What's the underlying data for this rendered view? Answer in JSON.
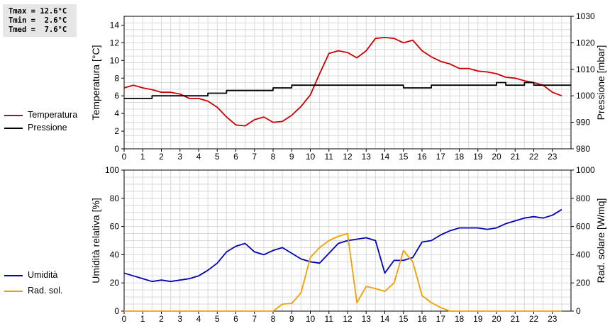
{
  "stats": {
    "lines": [
      "Tmax = 12.6°C",
      "Tmin =  2.6°C",
      "Tmed =  7.6°C"
    ]
  },
  "legends": {
    "top": [
      {
        "label": "Temperatura",
        "color": "#cc0000"
      },
      {
        "label": "Pressione",
        "color": "#000000"
      }
    ],
    "bottom": [
      {
        "label": "Umidità",
        "color": "#0000bb"
      },
      {
        "label": "Rad. sol.",
        "color": "#f0a000"
      }
    ]
  },
  "chart_data": [
    {
      "type": "line",
      "x_ticks": [
        0,
        1,
        2,
        3,
        4,
        5,
        6,
        7,
        8,
        9,
        10,
        11,
        12,
        13,
        14,
        15,
        16,
        17,
        18,
        19,
        20,
        21,
        22,
        23
      ],
      "xlim": [
        0,
        24
      ],
      "ylabel_left": "Temperatura [°C]",
      "ylim_left": [
        0,
        15
      ],
      "yticks_left": [
        0,
        2,
        4,
        6,
        8,
        10,
        12,
        14
      ],
      "ylabel_right": "Pressione [mbar]",
      "ylim_right": [
        980,
        1030
      ],
      "yticks_right": [
        980,
        990,
        1000,
        1010,
        1020,
        1030
      ],
      "grid": true,
      "legend": "left",
      "series": [
        {
          "name": "Temperatura",
          "axis": "left",
          "color": "#cc0000",
          "x": [
            0,
            0.5,
            1,
            1.5,
            2,
            2.5,
            3,
            3.5,
            4,
            4.5,
            5,
            5.5,
            6,
            6.5,
            7,
            7.5,
            8,
            8.5,
            9,
            9.5,
            10,
            10.5,
            11,
            11.5,
            12,
            12.5,
            13,
            13.5,
            14,
            14.5,
            15,
            15.5,
            16,
            16.5,
            17,
            17.5,
            18,
            18.5,
            19,
            19.5,
            20,
            20.5,
            21,
            21.5,
            22,
            22.5,
            23,
            23.5
          ],
          "y": [
            6.9,
            7.2,
            6.9,
            6.7,
            6.4,
            6.4,
            6.2,
            5.7,
            5.7,
            5.4,
            4.7,
            3.6,
            2.7,
            2.6,
            3.3,
            3.6,
            3.0,
            3.1,
            3.8,
            4.8,
            6.1,
            8.5,
            10.8,
            11.1,
            10.9,
            10.3,
            11.1,
            12.5,
            12.6,
            12.5,
            12.0,
            12.3,
            11.1,
            10.4,
            9.9,
            9.6,
            9.1,
            9.1,
            8.8,
            8.7,
            8.5,
            8.1,
            8.0,
            7.7,
            7.5,
            7.2,
            6.4,
            6.0
          ]
        },
        {
          "name": "Pressione",
          "axis": "right",
          "color": "#000000",
          "x": [
            0,
            0.5,
            1,
            1.5,
            2,
            2.5,
            3,
            3.5,
            4,
            4.5,
            5,
            5.5,
            6,
            6.5,
            7,
            7.5,
            8,
            8.5,
            9,
            9.5,
            10,
            10.5,
            11,
            11.5,
            12,
            12.5,
            13,
            13.5,
            14,
            14.5,
            15,
            15.5,
            16,
            16.5,
            17,
            17.5,
            18,
            18.5,
            19,
            19.5,
            20,
            20.5,
            21,
            21.5,
            22,
            22.5,
            23,
            23.5
          ],
          "y": [
            999,
            999,
            999,
            1000,
            1000,
            1000,
            1000,
            1000,
            1000,
            1001,
            1001,
            1002,
            1002,
            1002,
            1002,
            1002,
            1003,
            1003,
            1004,
            1004,
            1004,
            1004,
            1004,
            1004,
            1004,
            1004,
            1004,
            1004,
            1004,
            1004,
            1003,
            1003,
            1003,
            1004,
            1004,
            1004,
            1004,
            1004,
            1004,
            1004,
            1005,
            1004,
            1004,
            1005,
            1004,
            1004,
            1004,
            1004
          ]
        }
      ]
    },
    {
      "type": "line",
      "x_ticks": [
        0,
        1,
        2,
        3,
        4,
        5,
        6,
        7,
        8,
        9,
        10,
        11,
        12,
        13,
        14,
        15,
        16,
        17,
        18,
        19,
        20,
        21,
        22,
        23
      ],
      "xlim": [
        0,
        24
      ],
      "ylabel_left": "Umidità relativa [%]",
      "ylim_left": [
        0,
        100
      ],
      "yticks_left": [
        0,
        20,
        40,
        60,
        80,
        100
      ],
      "ylabel_right": "Rad. solare [W/mq]",
      "ylim_right": [
        0,
        1000
      ],
      "yticks_right": [
        0,
        200,
        400,
        600,
        800,
        1000
      ],
      "grid": true,
      "legend": "left",
      "series": [
        {
          "name": "Umidità",
          "axis": "left",
          "color": "#0000bb",
          "x": [
            0,
            0.5,
            1,
            1.5,
            2,
            2.5,
            3,
            3.5,
            4,
            4.5,
            5,
            5.5,
            6,
            6.5,
            7,
            7.5,
            8,
            8.5,
            9,
            9.5,
            10,
            10.5,
            11,
            11.5,
            12,
            12.5,
            13,
            13.5,
            14,
            14.5,
            15,
            15.5,
            16,
            16.5,
            17,
            17.5,
            18,
            18.5,
            19,
            19.5,
            20,
            20.5,
            21,
            21.5,
            22,
            22.5,
            23,
            23.5
          ],
          "y": [
            27,
            25,
            23,
            21,
            22,
            21,
            22,
            23,
            25,
            29,
            34,
            42,
            46,
            48,
            42,
            40,
            43,
            45,
            41,
            37,
            35,
            34,
            41,
            48,
            50,
            51,
            52,
            50,
            27,
            36,
            36,
            38,
            49,
            50,
            54,
            57,
            59,
            59,
            59,
            58,
            59,
            62,
            64,
            66,
            67,
            66,
            68,
            72
          ]
        },
        {
          "name": "Rad. sol.",
          "axis": "right",
          "color": "#f0a000",
          "x": [
            0,
            1,
            2,
            3,
            4,
            5,
            6,
            7,
            7.5,
            8,
            8.5,
            9,
            9.5,
            10,
            10.5,
            11,
            11.5,
            12,
            12.5,
            13,
            13.5,
            14,
            14.5,
            15,
            15.5,
            16,
            16.5,
            17,
            17.5,
            18,
            19,
            20,
            21,
            22,
            23,
            23.5
          ],
          "y": [
            0,
            0,
            0,
            0,
            0,
            0,
            0,
            0,
            0,
            0,
            50,
            55,
            130,
            380,
            450,
            500,
            530,
            550,
            60,
            175,
            160,
            140,
            200,
            430,
            350,
            110,
            60,
            25,
            0,
            0,
            0,
            0,
            0,
            0,
            0,
            0
          ]
        }
      ]
    }
  ]
}
